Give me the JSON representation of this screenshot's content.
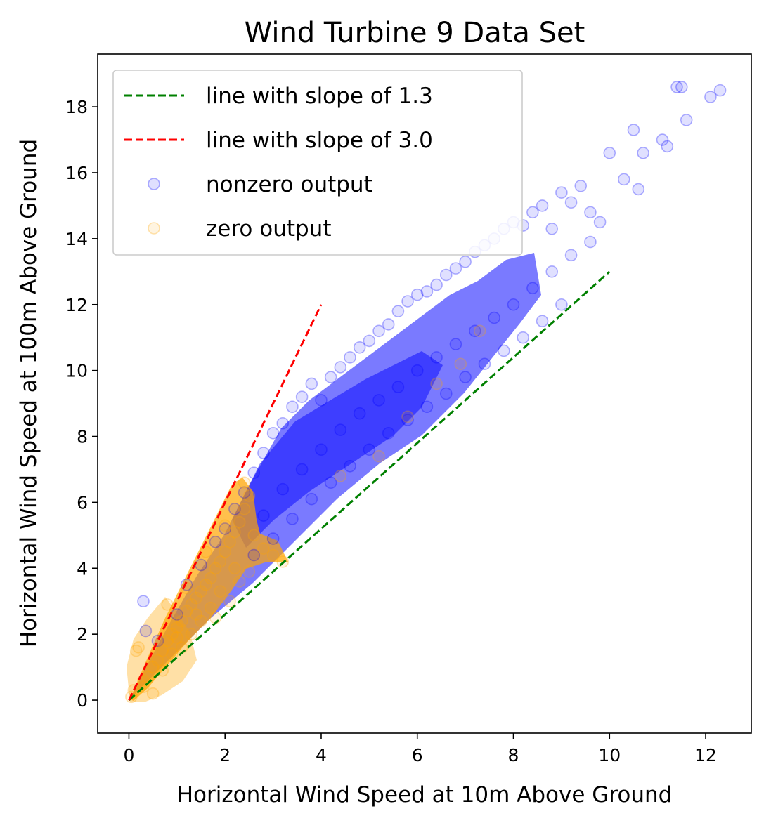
{
  "chart_data": {
    "type": "scatter",
    "title": "Wind Turbine 9 Data Set",
    "xlabel": "Horizontal Wind Speed at 10m Above Ground",
    "ylabel": "Horizontal Wind Speed at 100m Above Ground",
    "xlim": [
      -0.65,
      12.95
    ],
    "ylim": [
      -1.0,
      19.6
    ],
    "x_ticks": [
      0,
      2,
      4,
      6,
      8,
      10,
      12
    ],
    "y_ticks": [
      0,
      2,
      4,
      6,
      8,
      10,
      12,
      14,
      16,
      18
    ],
    "grid": false,
    "legend_position": "top-left",
    "series": [
      {
        "name": "line with slope of 1.3",
        "kind": "line",
        "style": "dashed",
        "color": "#008000",
        "x": [
          0,
          10
        ],
        "y": [
          0,
          13
        ]
      },
      {
        "name": "line with slope of 3.0",
        "kind": "line",
        "style": "dashed",
        "color": "#ff0000",
        "x": [
          0,
          4
        ],
        "y": [
          0,
          12
        ]
      },
      {
        "name": "nonzero output",
        "kind": "scatter",
        "color": "#0000ff",
        "alpha": 0.12,
        "x": [
          0.3,
          0.35,
          0.6,
          1.0,
          1.2,
          1.5,
          1.8,
          2.0,
          2.2,
          2.4,
          2.6,
          2.8,
          3.0,
          3.2,
          3.4,
          3.6,
          3.8,
          4.0,
          4.2,
          4.4,
          4.6,
          4.8,
          5.0,
          5.2,
          5.4,
          5.6,
          5.8,
          6.0,
          6.2,
          6.4,
          6.6,
          6.8,
          7.0,
          7.2,
          7.4,
          7.6,
          7.8,
          8.0,
          8.2,
          8.4,
          8.6,
          8.8,
          9.0,
          9.2,
          9.4,
          9.6,
          9.8,
          10.0,
          10.5,
          10.7,
          11.1,
          11.4,
          11.6,
          12.1,
          12.3,
          2.6,
          3.0,
          3.4,
          3.8,
          4.2,
          4.6,
          5.0,
          5.4,
          5.8,
          6.2,
          6.6,
          7.0,
          7.4,
          7.8,
          8.2,
          8.6,
          9.0,
          2.8,
          3.2,
          3.6,
          4.0,
          4.4,
          4.8,
          5.2,
          5.6,
          6.0,
          6.4,
          6.8,
          7.2,
          7.6,
          8.0,
          8.4,
          8.8,
          9.2,
          9.6,
          10.3,
          10.6,
          11.2,
          11.5
        ],
        "y": [
          3.0,
          2.1,
          1.8,
          2.6,
          3.5,
          4.1,
          4.8,
          5.2,
          5.8,
          6.3,
          6.9,
          7.5,
          8.1,
          8.4,
          8.9,
          9.2,
          9.6,
          9.1,
          9.8,
          10.1,
          10.4,
          10.7,
          10.9,
          11.2,
          11.4,
          11.8,
          12.1,
          12.3,
          12.4,
          12.6,
          12.9,
          13.1,
          13.3,
          13.6,
          13.8,
          14.0,
          14.3,
          14.5,
          14.4,
          14.8,
          15.0,
          14.3,
          15.4,
          15.1,
          15.6,
          14.8,
          14.5,
          16.6,
          17.3,
          16.6,
          17.0,
          18.6,
          17.6,
          18.3,
          18.5,
          4.4,
          4.9,
          5.5,
          6.1,
          6.6,
          7.1,
          7.6,
          8.1,
          8.5,
          8.9,
          9.3,
          9.8,
          10.2,
          10.6,
          11.0,
          11.5,
          12.0,
          5.6,
          6.4,
          7.0,
          7.6,
          8.2,
          8.7,
          9.1,
          9.5,
          10.0,
          10.4,
          10.8,
          11.2,
          11.6,
          12.0,
          12.5,
          13.0,
          13.5,
          13.9,
          15.8,
          15.5,
          16.8,
          18.6
        ]
      },
      {
        "name": "zero output",
        "kind": "scatter",
        "color": "#ffa500",
        "alpha": 0.12,
        "x": [
          0.05,
          0.1,
          0.15,
          0.2,
          0.3,
          0.4,
          0.5,
          0.6,
          0.7,
          0.8,
          0.9,
          1.0,
          1.1,
          1.2,
          1.3,
          1.4,
          1.5,
          1.6,
          1.7,
          1.8,
          1.9,
          2.0,
          2.1,
          2.2,
          2.3,
          2.4,
          2.5,
          2.6,
          2.8,
          3.0,
          3.2,
          0.3,
          0.5,
          0.7,
          0.9,
          1.1,
          1.3,
          1.5,
          1.7,
          1.9,
          2.1,
          2.3,
          2.5,
          0.8,
          1.2,
          1.6,
          2.0,
          2.4,
          1.0,
          1.4,
          1.8,
          2.2,
          4.4,
          5.2,
          5.8,
          6.4,
          6.9,
          7.3
        ],
        "y": [
          0.1,
          0.3,
          1.5,
          1.6,
          0.4,
          0.7,
          1.0,
          1.2,
          1.5,
          1.8,
          2.0,
          2.2,
          2.4,
          2.7,
          2.9,
          3.1,
          3.3,
          3.5,
          3.7,
          4.0,
          4.2,
          4.5,
          4.8,
          5.1,
          5.4,
          5.8,
          6.2,
          5.0,
          4.6,
          4.4,
          4.2,
          0.6,
          0.2,
          0.9,
          1.4,
          1.6,
          2.0,
          2.4,
          2.8,
          3.3,
          3.0,
          3.6,
          3.9,
          2.9,
          3.4,
          4.5,
          5.3,
          6.6,
          1.9,
          2.6,
          2.5,
          4.0,
          6.8,
          7.4,
          8.6,
          9.6,
          10.2,
          11.2
        ]
      }
    ]
  }
}
